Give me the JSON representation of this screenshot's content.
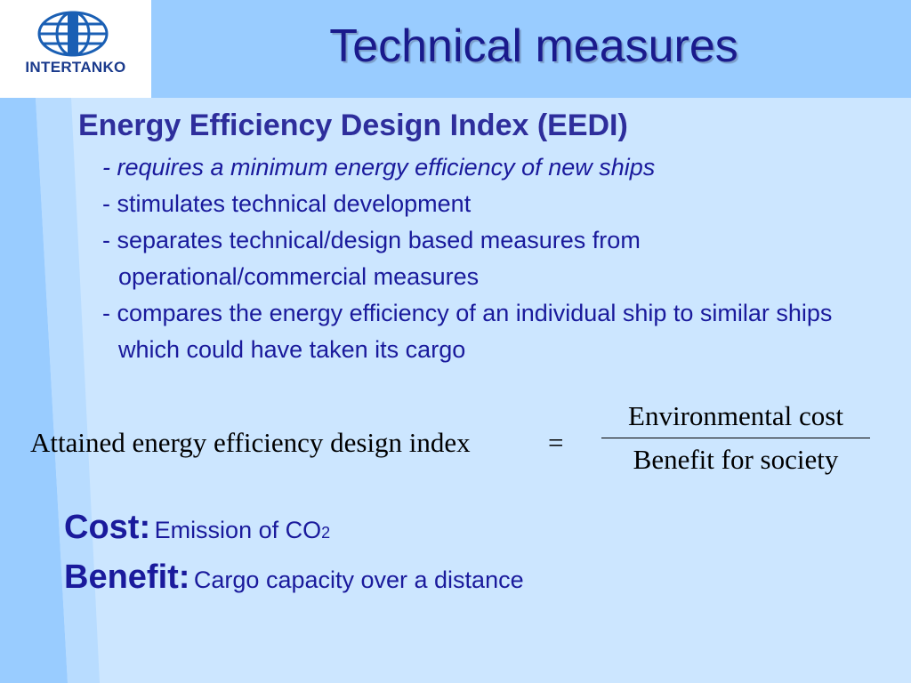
{
  "logo": {
    "text": "INTERTANKO"
  },
  "title": "Technical measures",
  "heading": "Energy Efficiency Design Index (EEDI)",
  "bullets": [
    {
      "text": "- requires a minimum energy efficiency of new ships",
      "italic": true
    },
    {
      "text": "- stimulates technical development",
      "italic": false
    },
    {
      "text": "- separates technical/design based measures from operational/commercial measures",
      "italic": false
    },
    {
      "text": "- compares the energy efficiency of an individual ship to similar ships which could have taken its cargo",
      "italic": false
    }
  ],
  "formula": {
    "lhs": "Attained energy efficiency design index",
    "equals": "=",
    "numerator": "Environmental cost",
    "denominator": "Benefit for society"
  },
  "definitions": [
    {
      "term": "Cost:",
      "text": "Emission of CO",
      "subscript": "2"
    },
    {
      "term": "Benefit:",
      "text": "Cargo capacity over a distance",
      "subscript": null
    }
  ]
}
